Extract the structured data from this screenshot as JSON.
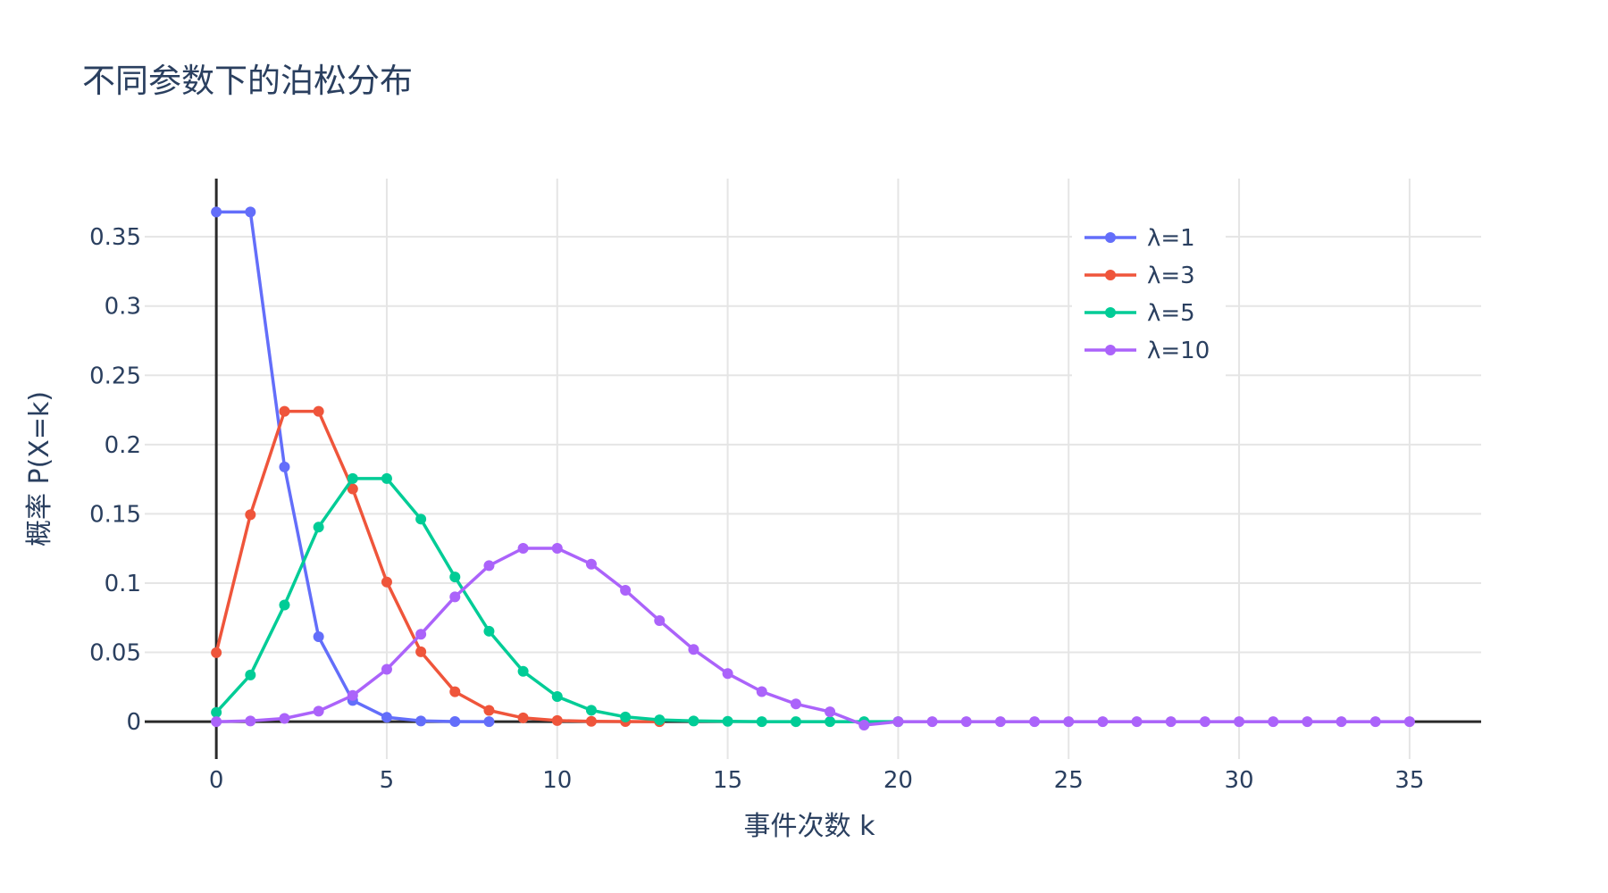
{
  "chart_data": {
    "type": "line",
    "title": "不同参数下的泊松分布",
    "xlabel": "事件次数 k",
    "ylabel": "概率 P(X=k)",
    "xlim": [
      -2.1,
      37.1
    ],
    "ylim": [
      -0.027,
      0.392
    ],
    "x_ticks": [
      0,
      5,
      10,
      15,
      20,
      25,
      30,
      35
    ],
    "x_tick_labels": [
      "0",
      "5",
      "10",
      "15",
      "20",
      "25",
      "30",
      "35"
    ],
    "y_ticks": [
      0,
      0.05,
      0.1,
      0.15,
      0.2,
      0.25,
      0.3,
      0.35
    ],
    "y_tick_labels": [
      "0",
      "0.05",
      "0.1",
      "0.15",
      "0.2",
      "0.25",
      "0.3",
      "0.35"
    ],
    "grid": true,
    "legend_position": "top-right",
    "series": [
      {
        "name": "λ=1",
        "color": "#636efa",
        "x": [
          0,
          1,
          2,
          3,
          4,
          5,
          6,
          7,
          8
        ],
        "y": [
          0.3679,
          0.3679,
          0.1839,
          0.0613,
          0.0153,
          0.0031,
          0.0005,
          0.0001,
          0.0
        ]
      },
      {
        "name": "λ=3",
        "color": "#ef553b",
        "x": [
          0,
          1,
          2,
          3,
          4,
          5,
          6,
          7,
          8,
          9,
          10,
          11,
          12,
          13
        ],
        "y": [
          0.0498,
          0.1494,
          0.224,
          0.224,
          0.168,
          0.1008,
          0.0504,
          0.0216,
          0.0081,
          0.0027,
          0.0008,
          0.0002,
          0.0001,
          0.0
        ]
      },
      {
        "name": "λ=5",
        "color": "#00cc96",
        "x": [
          0,
          1,
          2,
          3,
          4,
          5,
          6,
          7,
          8,
          9,
          10,
          11,
          12,
          13,
          14,
          15,
          16,
          17,
          18,
          19,
          20
        ],
        "y": [
          0.0067,
          0.0337,
          0.0842,
          0.1404,
          0.1755,
          0.1755,
          0.1462,
          0.1044,
          0.0653,
          0.0363,
          0.0181,
          0.0082,
          0.0034,
          0.0013,
          0.0005,
          0.0002,
          0.0,
          0.0,
          0.0,
          0.0,
          0.0
        ]
      },
      {
        "name": "λ=10",
        "color": "#ab63fa",
        "x": [
          0,
          1,
          2,
          3,
          4,
          5,
          6,
          7,
          8,
          9,
          10,
          11,
          12,
          13,
          14,
          15,
          16,
          17,
          18,
          19,
          20,
          21,
          22,
          23,
          24,
          25,
          26,
          27,
          28,
          29,
          30,
          31,
          32,
          33,
          34,
          35
        ],
        "y": [
          0.0,
          0.0005,
          0.0023,
          0.0076,
          0.0189,
          0.0378,
          0.0631,
          0.0901,
          0.1126,
          0.1251,
          0.1251,
          0.1137,
          0.0948,
          0.0729,
          0.0521,
          0.0347,
          0.0217,
          0.0128,
          0.0071,
          -0.0025,
          0.0,
          0.0,
          0.0,
          0.0,
          0.0,
          0.0,
          0.0,
          0.0,
          0.0,
          0.0,
          0.0,
          0.0,
          0.0,
          0.0,
          0.0,
          0.0
        ]
      }
    ]
  }
}
